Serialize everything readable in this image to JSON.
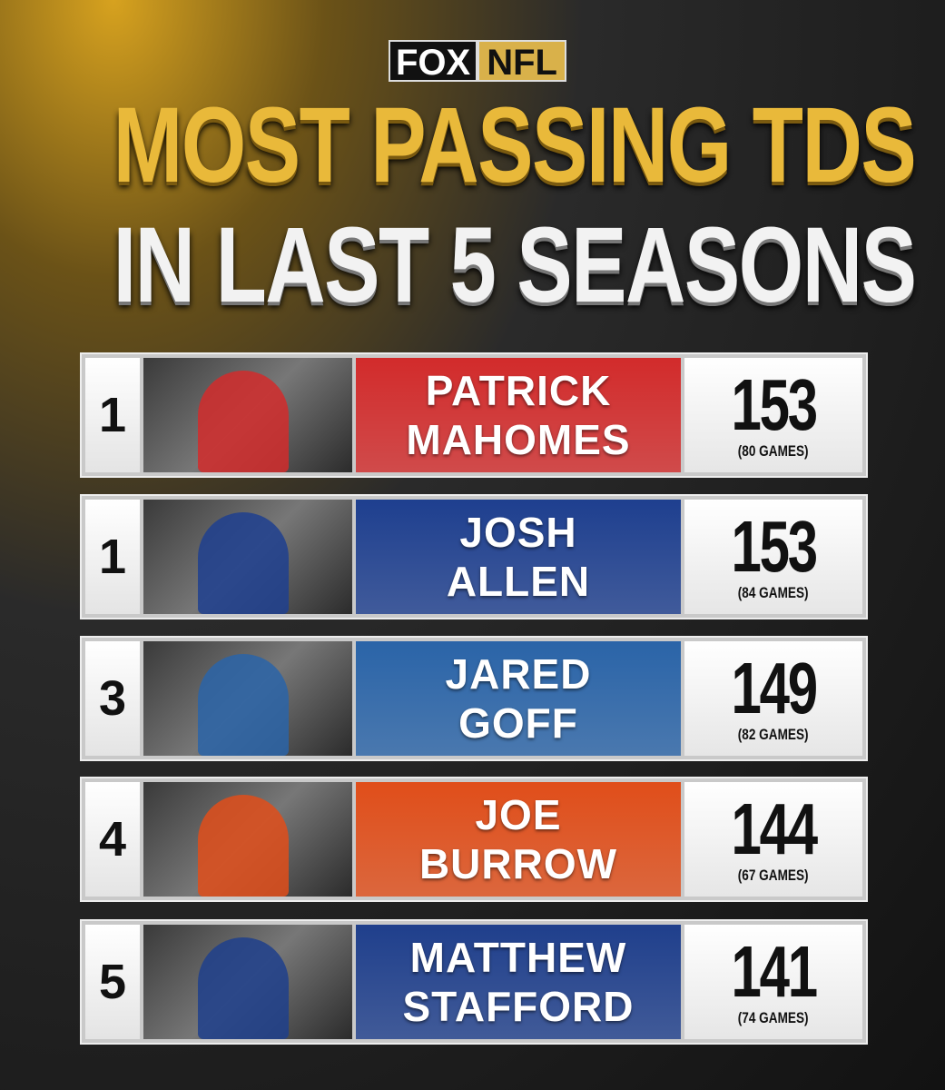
{
  "header": {
    "logo_left": "FOX",
    "logo_right": "NFL",
    "title_line1": "MOST PASSING TDS",
    "title_line2": "IN LAST 5 SEASONS"
  },
  "rows": [
    {
      "rank": "1",
      "name_line1": "PATRICK",
      "name_line2": "MAHOMES",
      "tds": 153,
      "games": "(80 GAMES)",
      "color": "#d22b2b"
    },
    {
      "rank": "1",
      "name_line1": "JOSH",
      "name_line2": "ALLEN",
      "tds": 153,
      "games": "(84 GAMES)",
      "color": "#1e3f8f"
    },
    {
      "rank": "3",
      "name_line1": "JARED",
      "name_line2": "GOFF",
      "tds": 149,
      "games": "(82 GAMES)",
      "color": "#2a64a8"
    },
    {
      "rank": "4",
      "name_line1": "JOE",
      "name_line2": "BURROW",
      "tds": 144,
      "games": "(67 GAMES)",
      "color": "#e04e1a"
    },
    {
      "rank": "5",
      "name_line1": "MATTHEW",
      "name_line2": "STAFFORD",
      "tds": 141,
      "games": "(74 GAMES)",
      "color": "#1f3f8c"
    }
  ]
}
